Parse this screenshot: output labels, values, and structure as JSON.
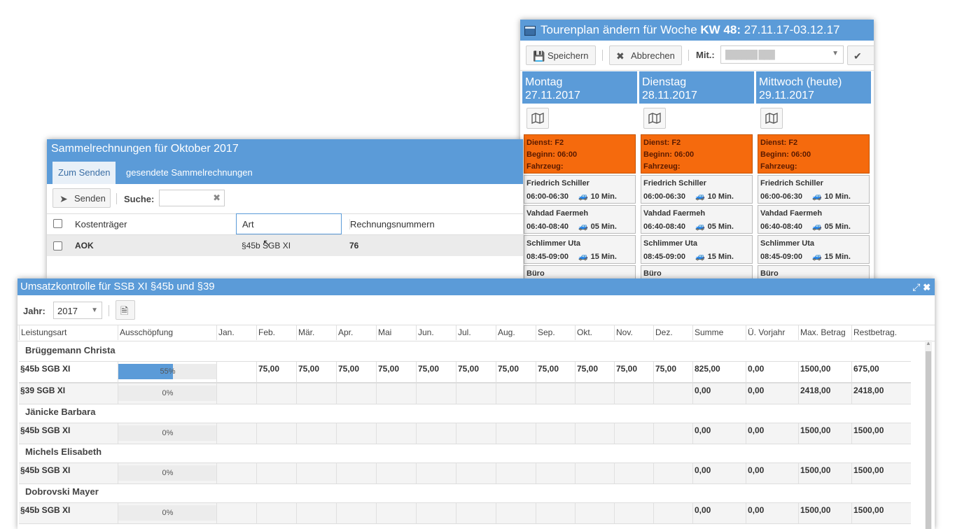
{
  "tour": {
    "title_prefix": "Tourenplan ändern für Woche ",
    "title_week": "KW 48:",
    "title_range": " 27.11.17-03.12.17",
    "save_label": "Speichern",
    "cancel_label": "Abbrechen",
    "employee_label": "Mit.:",
    "employee_value": "██████ ███",
    "days": [
      {
        "name": "Montag",
        "date": "27.11.2017"
      },
      {
        "name": "Dienstag",
        "date": "28.11.2017"
      },
      {
        "name": "Mittwoch (heute)",
        "date": "29.11.2017"
      }
    ],
    "duty": {
      "dienst": "Dienst: F2",
      "beginn": "Beginn: 06:00",
      "fahrzeug": "Fahrzeug:"
    },
    "appointments": [
      {
        "name": "Friedrich Schiller",
        "time": "06:00-06:30",
        "drive": "10 Min."
      },
      {
        "name": "Vahdad Faermeh",
        "time": "06:40-08:40",
        "drive": "05 Min."
      },
      {
        "name": "Schlimmer Uta",
        "time": "08:45-09:00",
        "drive": "15 Min."
      },
      {
        "name": "Büro",
        "time": "",
        "drive": ""
      }
    ],
    "colors": {
      "header": "#5b9bd8",
      "duty": "#f56a0d"
    }
  },
  "sammel": {
    "title": "Sammelrechnungen für Oktober 2017",
    "tabs": [
      "Zum Senden",
      "gesendete Sammelrechnungen"
    ],
    "send_label": "Senden",
    "search_label": "Suche:",
    "search_value": "",
    "columns": [
      "Kostenträger",
      "Art",
      "Rechnungsnummern"
    ],
    "rows": [
      {
        "kostentraeger": "AOK",
        "art": "§45b SGB XI",
        "nummer": "76"
      }
    ]
  },
  "umsatz": {
    "title": "Umsatzkontrolle für SSB XI §45b und §39",
    "year_label": "Jahr:",
    "year_value": "2017",
    "columns": [
      "Leistungsart",
      "Ausschöpfung",
      "Jan.",
      "Feb.",
      "Mär.",
      "Apr.",
      "Mai",
      "Jun.",
      "Jul.",
      "Aug.",
      "Sep.",
      "Okt.",
      "Nov.",
      "Dez.",
      "Summe",
      "Ü. Vorjahr",
      "Max. Betrag",
      "Restbetrag."
    ],
    "groups": [
      {
        "name": "Brüggemann Christa",
        "rows": [
          {
            "art": "§45b SGB XI",
            "pct_label": "55%",
            "pct": 0.55,
            "months": [
              "",
              "75,00",
              "75,00",
              "75,00",
              "75,00",
              "75,00",
              "75,00",
              "75,00",
              "75,00",
              "75,00",
              "75,00",
              "75,00"
            ],
            "summe": "825,00",
            "vorjahr": "0,00",
            "max": "1500,00",
            "rest": "675,00"
          },
          {
            "art": "§39 SGB XI",
            "pct_label": "0%",
            "pct": 0,
            "months": [
              "",
              "",
              "",
              "",
              "",
              "",
              "",
              "",
              "",
              "",
              "",
              ""
            ],
            "summe": "0,00",
            "vorjahr": "0,00",
            "max": "2418,00",
            "rest": "2418,00"
          }
        ]
      },
      {
        "name": "Jänicke Barbara",
        "rows": [
          {
            "art": "§45b SGB XI",
            "pct_label": "0%",
            "pct": 0,
            "months": [
              "",
              "",
              "",
              "",
              "",
              "",
              "",
              "",
              "",
              "",
              "",
              ""
            ],
            "summe": "0,00",
            "vorjahr": "0,00",
            "max": "1500,00",
            "rest": "1500,00"
          }
        ]
      },
      {
        "name": "Michels Elisabeth",
        "rows": [
          {
            "art": "§45b SGB XI",
            "pct_label": "0%",
            "pct": 0,
            "months": [
              "",
              "",
              "",
              "",
              "",
              "",
              "",
              "",
              "",
              "",
              "",
              ""
            ],
            "summe": "0,00",
            "vorjahr": "0,00",
            "max": "1500,00",
            "rest": "1500,00"
          }
        ]
      },
      {
        "name": "Dobrovski Mayer",
        "rows": [
          {
            "art": "§45b SGB XI",
            "pct_label": "0%",
            "pct": 0,
            "months": [
              "",
              "",
              "",
              "",
              "",
              "",
              "",
              "",
              "",
              "",
              "",
              ""
            ],
            "summe": "0,00",
            "vorjahr": "0,00",
            "max": "1500,00",
            "rest": "1500,00"
          }
        ]
      }
    ]
  }
}
